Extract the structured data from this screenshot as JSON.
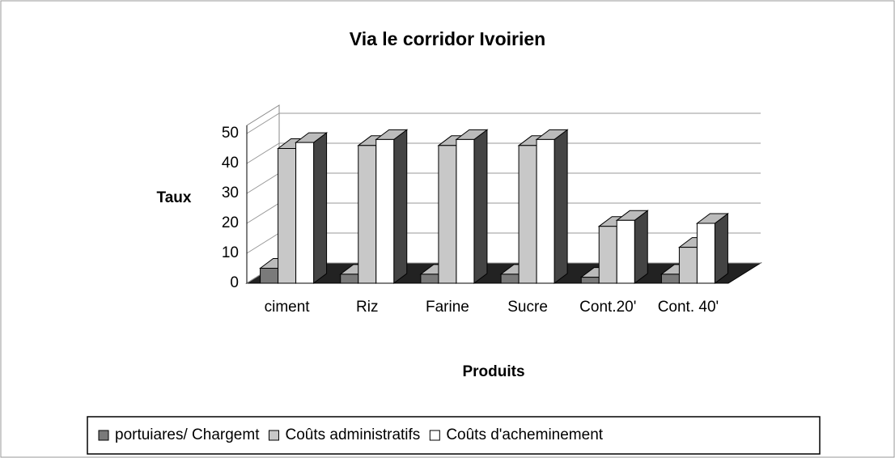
{
  "chart_data": {
    "type": "bar3d",
    "title": "Via le corridor Ivoirien",
    "y_label": "Taux",
    "x_label": "Produits",
    "categories": [
      "ciment",
      "Riz",
      "Farine",
      "Sucre",
      "Cont.20'",
      "Cont. 40'"
    ],
    "series": [
      {
        "name": "portuiares/ Chargemt",
        "color": "#7a7a7a",
        "values": [
          5,
          3,
          3,
          3,
          2,
          3
        ]
      },
      {
        "name": "Coûts administratifs",
        "color": "#c8c8c8",
        "values": [
          45,
          46,
          46,
          46,
          19,
          12
        ]
      },
      {
        "name": "Coûts d'acheminement",
        "color": "#ffffff",
        "values": [
          47,
          48,
          48,
          48,
          21,
          20
        ]
      }
    ],
    "ylim": [
      0,
      50
    ],
    "yticks": [
      0,
      10,
      20,
      30,
      40,
      50
    ],
    "grid": true
  }
}
